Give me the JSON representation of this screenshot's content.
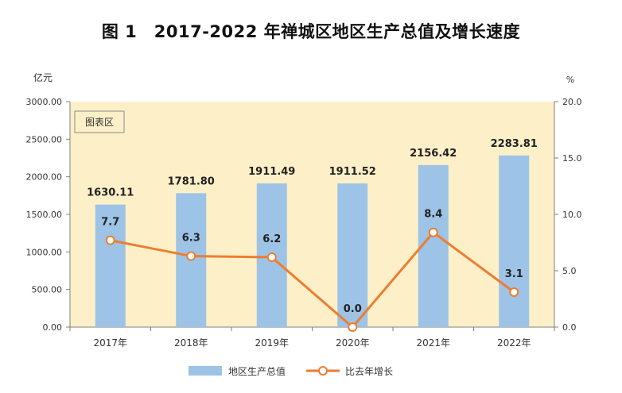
{
  "chart_data": {
    "type": "bar",
    "title": "图 1　2017-2022 年禅城区地区生产总值及增长速度",
    "left_unit": "亿元",
    "right_unit": "%",
    "plot_area_label": "图表区",
    "categories": [
      "2017年",
      "2018年",
      "2019年",
      "2020年",
      "2021年",
      "2022年"
    ],
    "series": [
      {
        "name": "地区生产总值",
        "kind": "bar",
        "axis": "left",
        "color": "#9dc3e6",
        "values": [
          1630.11,
          1781.8,
          1911.49,
          1911.52,
          2156.42,
          2283.81
        ],
        "labels": [
          "1630.11",
          "1781.80",
          "1911.49",
          "1911.52",
          "2156.42",
          "2283.81"
        ]
      },
      {
        "name": "比去年增长",
        "kind": "line",
        "axis": "right",
        "color": "#ed7d31",
        "values": [
          7.7,
          6.3,
          6.2,
          0.0,
          8.4,
          3.1
        ],
        "labels": [
          "7.7",
          "6.3",
          "6.2",
          "0.0",
          "8.4",
          "3.1"
        ]
      }
    ],
    "left_axis": {
      "ylim": [
        0,
        3000
      ],
      "ticks": [
        0,
        500,
        1000,
        1500,
        2000,
        2500,
        3000
      ],
      "tick_labels": [
        "0.00",
        "500.00",
        "1000.00",
        "1500.00",
        "2000.00",
        "2500.00",
        "3000.00"
      ]
    },
    "right_axis": {
      "ylim": [
        0,
        20
      ],
      "ticks": [
        0,
        5,
        10,
        15,
        20
      ],
      "tick_labels": [
        "0.0",
        "5.0",
        "10.0",
        "15.0",
        "20.0"
      ]
    },
    "plot_background": "#fdf0c8",
    "grid": false,
    "legend_position": "bottom"
  }
}
